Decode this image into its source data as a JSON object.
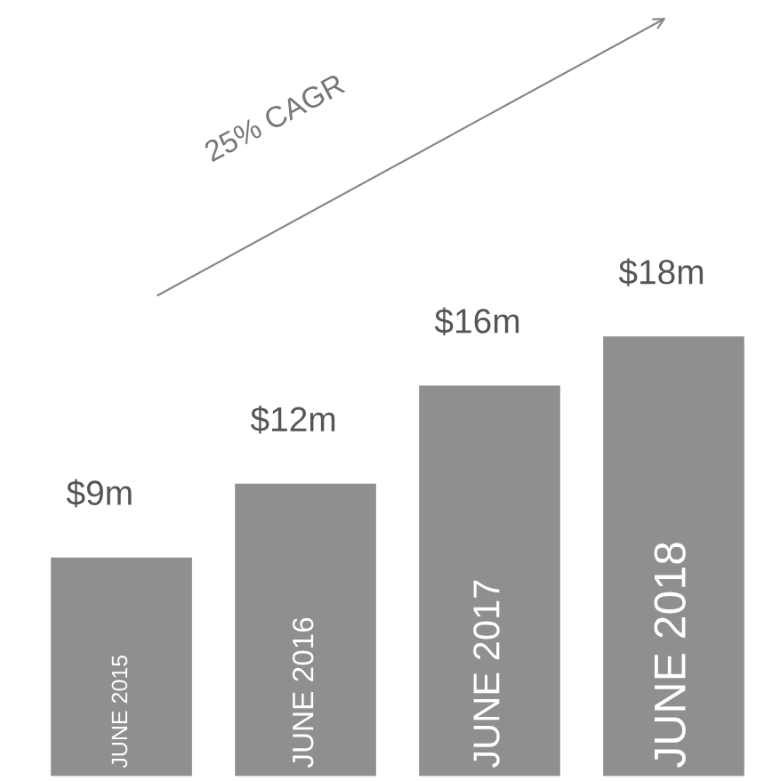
{
  "chart_data": {
    "type": "bar",
    "categories": [
      "JUNE 2015",
      "JUNE 2016",
      "JUNE 2017",
      "JUNE 2018"
    ],
    "values": [
      9,
      12,
      16,
      18
    ],
    "value_labels": [
      "$9m",
      "$12m",
      "$16m",
      "$18m"
    ],
    "color": "#8f8f8f",
    "annotations": [
      "25% CAGR"
    ]
  }
}
